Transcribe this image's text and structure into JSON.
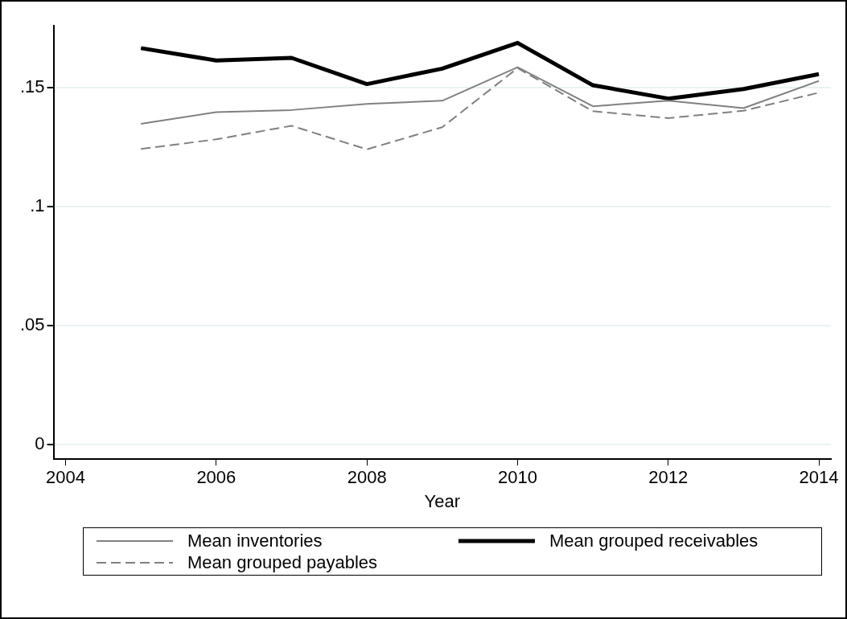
{
  "chart_data": {
    "type": "line",
    "xlabel": "Year",
    "x": [
      2005,
      2006,
      2007,
      2008,
      2009,
      2010,
      2011,
      2012,
      2013,
      2014
    ],
    "series": [
      {
        "name": "Mean inventories",
        "color": "#808080",
        "line_style": "solid",
        "values": [
          0.1348,
          0.1397,
          0.1406,
          0.1432,
          0.1445,
          0.1586,
          0.1422,
          0.1445,
          0.1414,
          0.1528
        ]
      },
      {
        "name": "Mean grouped receivables",
        "color": "#000000",
        "line_style": "solid",
        "values": [
          0.1666,
          0.1614,
          0.1625,
          0.1515,
          0.158,
          0.1688,
          0.151,
          0.1454,
          0.1494,
          0.1557
        ]
      },
      {
        "name": "Mean grouped payables",
        "color": "#808080",
        "line_style": "dashed",
        "values": [
          0.1243,
          0.1283,
          0.134,
          0.1241,
          0.1334,
          0.1582,
          0.1401,
          0.1372,
          0.1403,
          0.1479
        ]
      }
    ],
    "xlim": [
      2003.84,
      2014.16
    ],
    "xticks": [
      2004,
      2006,
      2008,
      2010,
      2012,
      2014
    ],
    "ylim": [
      -0.006,
      0.176
    ],
    "yticks": [
      0,
      {
        "value": 0.05,
        "label": ".05"
      },
      {
        "value": 0.1,
        "label": ".1"
      },
      {
        "value": 0.15,
        "label": ".15"
      }
    ],
    "grid": "y",
    "legend": "bottom",
    "marker": "none"
  }
}
